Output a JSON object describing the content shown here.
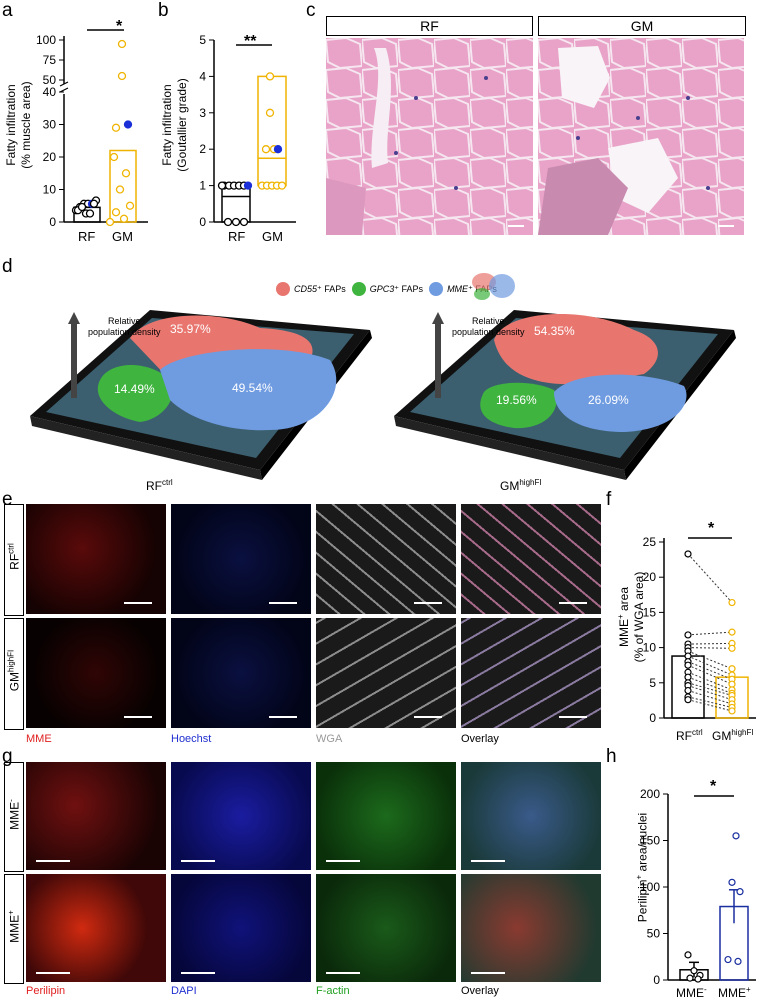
{
  "panels": {
    "a": "a",
    "b": "b",
    "c": "c",
    "d": "d",
    "e": "e",
    "f": "f",
    "g": "g",
    "h": "h"
  },
  "panel_a": {
    "ylabel_line1": "Fatty infiltration",
    "ylabel_line2": "(% muscle area)",
    "yticks_upper": [
      "100",
      "75",
      "50"
    ],
    "yticks_lower": [
      "40",
      "30",
      "20",
      "10",
      "0"
    ],
    "categories": [
      "RF",
      "GM"
    ],
    "sig": "*"
  },
  "panel_b": {
    "ylabel_line1": "Fatty infiltration",
    "ylabel_line2": "(Goutallier grade)",
    "yticks": [
      "0",
      "1",
      "2",
      "3",
      "4",
      "5"
    ],
    "categories": [
      "RF",
      "GM"
    ],
    "sig": "**"
  },
  "panel_c": {
    "label_left": "RF",
    "label_right": "GM"
  },
  "panel_d": {
    "legend": [
      {
        "italic": "CD55",
        "rest": "⁺ FAPs",
        "color": "#e8766f"
      },
      {
        "italic": "GPC3",
        "rest": "⁺ FAPs",
        "color": "#3fb43f"
      },
      {
        "italic": "MME",
        "rest": "⁺ FAPs",
        "color": "#6f9be0"
      }
    ],
    "axis_label_line1": "Relative",
    "axis_label_line2": "population density",
    "left": {
      "red": "35.97%",
      "green": "14.49%",
      "blue": "49.54%",
      "name": "RF",
      "sup": "ctrl"
    },
    "right": {
      "red": "54.35%",
      "green": "19.56%",
      "blue": "26.09%",
      "name": "GM",
      "sup": "highFI"
    }
  },
  "panel_e": {
    "row1": "RF",
    "row1_sup": "ctrl",
    "row2": "GM",
    "row2_sup": "highFI",
    "channels": [
      "MME",
      "Hoechst",
      "WGA",
      "Overlay"
    ],
    "channel_colors": [
      "#e02020",
      "#2030d0",
      "#999999",
      "#000000"
    ]
  },
  "panel_f": {
    "ylabel_line1": "MME",
    "ylabel_sup": "+",
    "ylabel_line1_rest": " area",
    "ylabel_line2": "(% of WGA area)",
    "yticks": [
      "0",
      "5",
      "10",
      "15",
      "20",
      "25"
    ],
    "cat1": "RF",
    "cat1_sup": "ctrl",
    "cat2": "GM",
    "cat2_sup": "highFI",
    "sig": "*"
  },
  "panel_g": {
    "row1": "MME",
    "row1_sup": "-",
    "row2": "MME",
    "row2_sup": "+",
    "channels": [
      "Perilipin",
      "DAPI",
      "F-actin",
      "Overlay"
    ],
    "channel_colors": [
      "#e02020",
      "#2030d0",
      "#20a020",
      "#000000"
    ]
  },
  "panel_h": {
    "ylabel_main": "Perilipin",
    "ylabel_sup": "+",
    "ylabel_rest": " area/nuclei",
    "yticks": [
      "0",
      "50",
      "100",
      "150",
      "200"
    ],
    "cat1": "MME",
    "cat1_sup": "-",
    "cat2": "MME",
    "cat2_sup": "+",
    "sig": "*"
  },
  "chart_data": [
    {
      "type": "bar",
      "panel": "a",
      "categories": [
        "RF",
        "GM"
      ],
      "values": [
        4.5,
        22
      ],
      "ylim": [
        0,
        100
      ],
      "points": {
        "RF": [
          3,
          4,
          5,
          5,
          5,
          6,
          3,
          2,
          5,
          4,
          2
        ],
        "GM": [
          95,
          55,
          30,
          29,
          20,
          15,
          10,
          5,
          3,
          1,
          0
        ]
      }
    },
    {
      "type": "bar",
      "panel": "b",
      "categories": [
        "RF",
        "GM"
      ],
      "values": [
        0.7,
        1.75
      ],
      "ylim": [
        0,
        5
      ],
      "range_box": {
        "RF": [
          0,
          1
        ],
        "GM": [
          1,
          4
        ]
      },
      "points": {
        "RF": [
          1,
          1,
          1,
          1,
          1,
          1,
          1,
          0,
          0,
          0
        ],
        "GM": [
          4,
          3,
          2,
          2,
          2,
          1,
          1,
          1,
          1,
          1
        ]
      }
    },
    {
      "type": "bar",
      "panel": "f",
      "categories": [
        "RFctrl",
        "GMhighFI"
      ],
      "values": [
        8.8,
        5.8
      ],
      "ylim": [
        0,
        25
      ],
      "paired_points": [
        [
          23.3,
          16.4
        ],
        [
          11.8,
          12.2
        ],
        [
          10.5,
          10.6
        ],
        [
          10,
          9.9
        ],
        [
          9.5,
          7
        ],
        [
          8.8,
          6.1
        ],
        [
          8,
          5.5
        ],
        [
          7.5,
          4.8
        ],
        [
          6.5,
          4
        ],
        [
          5.8,
          3.5
        ],
        [
          5,
          3.2
        ],
        [
          4.6,
          2.6
        ],
        [
          3.9,
          2
        ],
        [
          3,
          1.5
        ],
        [
          2.6,
          1
        ]
      ]
    },
    {
      "type": "bar",
      "panel": "h",
      "categories": [
        "MME-",
        "MME+"
      ],
      "values": [
        11,
        79
      ],
      "errors": [
        8,
        18
      ],
      "ylim": [
        0,
        200
      ],
      "points": {
        "MME-": [
          27,
          10,
          5,
          2,
          1
        ],
        "MME+": [
          155,
          105,
          95,
          22,
          20
        ]
      }
    }
  ]
}
